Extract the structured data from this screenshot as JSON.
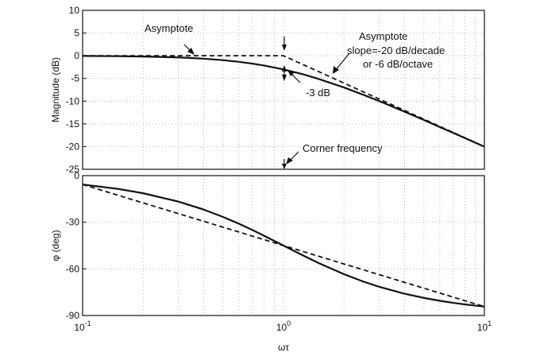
{
  "chart_data": [
    {
      "type": "line",
      "title": "",
      "xscale": "log",
      "xlim": [
        0.1,
        10
      ],
      "ylim": [
        -25,
        10
      ],
      "ylabel": "Magnitude (dB)",
      "xlabel": "",
      "grid": true,
      "yticks": [
        "10",
        "5",
        "0",
        "-5",
        "-10",
        "-15",
        "-20",
        "-25"
      ],
      "series": [
        {
          "style": "solid",
          "x": [
            0.1,
            0.15,
            0.2,
            0.3,
            0.4,
            0.5,
            0.6,
            0.7,
            0.8,
            1,
            1.25,
            1.5,
            2,
            2.5,
            3,
            4,
            5,
            6,
            7,
            8,
            10
          ],
          "y": [
            -0.04,
            -0.1,
            -0.17,
            -0.37,
            -0.64,
            -0.97,
            -1.34,
            -1.73,
            -2.15,
            -3.01,
            -4.08,
            -5.12,
            -6.99,
            -8.6,
            -10.0,
            -12.3,
            -14.15,
            -15.7,
            -17.0,
            -18.13,
            -20.04
          ]
        },
        {
          "style": "dashed",
          "x": [
            0.1,
            1,
            10
          ],
          "y": [
            0,
            0,
            -20
          ]
        }
      ],
      "annotations": [
        {
          "text": "Asymptote"
        },
        {
          "text": "Asymptote",
          "line2": "slope=-20 dB/decade",
          "line3": "or -6 dB/octave"
        },
        {
          "text": "-3 dB"
        },
        {
          "text": "Corner frequency"
        }
      ]
    },
    {
      "type": "line",
      "title": "",
      "xscale": "log",
      "xlim": [
        0.1,
        10
      ],
      "ylim": [
        -90,
        0
      ],
      "ylabel": "φ (deg)",
      "xlabel": "ωτ",
      "grid": true,
      "yticks": [
        "0",
        "-30",
        "-60",
        "-90"
      ],
      "xticks": [
        {
          "base": "10",
          "exp": "-1"
        },
        {
          "base": "10",
          "exp": "0"
        },
        {
          "base": "10",
          "exp": "1"
        }
      ],
      "series": [
        {
          "style": "solid",
          "x": [
            0.1,
            0.15,
            0.2,
            0.3,
            0.4,
            0.5,
            0.6,
            0.7,
            0.8,
            1,
            1.25,
            1.5,
            2,
            2.5,
            3,
            4,
            5,
            6,
            7,
            8,
            10
          ],
          "y": [
            -5.71,
            -8.53,
            -11.31,
            -16.7,
            -21.8,
            -26.57,
            -30.96,
            -34.99,
            -38.66,
            -45.0,
            -51.34,
            -56.31,
            -63.43,
            -68.2,
            -71.57,
            -75.96,
            -78.69,
            -80.54,
            -81.87,
            -82.87,
            -84.29
          ]
        },
        {
          "style": "dashed",
          "x": [
            0.1,
            10
          ],
          "y": [
            -5.71,
            -84.29
          ]
        }
      ]
    }
  ]
}
